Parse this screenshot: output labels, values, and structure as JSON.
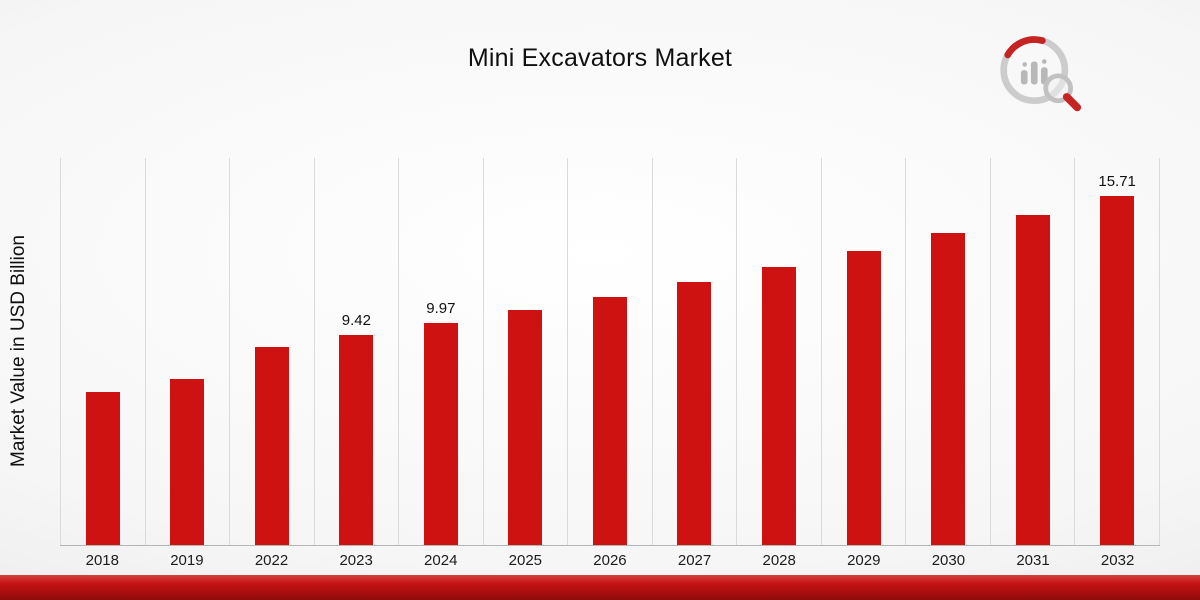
{
  "page": {
    "title": "Mini Excavators Market",
    "y_axis_label": "Market Value in USD Billion",
    "logo_name": "market-research-future-logo",
    "accent_color": "#c51212"
  },
  "chart_data": {
    "type": "bar",
    "title": "Mini Excavators Market",
    "xlabel": "",
    "ylabel": "Market Value in USD Billion",
    "ylim": [
      0,
      17.4
    ],
    "grid": "vertical-only",
    "legend": "none",
    "bar_color": "#ce1212",
    "categories": [
      "2018",
      "2019",
      "2022",
      "2023",
      "2024",
      "2025",
      "2026",
      "2027",
      "2028",
      "2029",
      "2030",
      "2031",
      "2032"
    ],
    "values": [
      6.86,
      7.45,
      8.88,
      9.42,
      9.97,
      10.55,
      11.17,
      11.82,
      12.51,
      13.24,
      14.02,
      14.84,
      15.71
    ],
    "data_labels": [
      "",
      "",
      "",
      "9.42",
      "9.97",
      "",
      "",
      "",
      "",
      "",
      "",
      "",
      "15.71"
    ]
  }
}
